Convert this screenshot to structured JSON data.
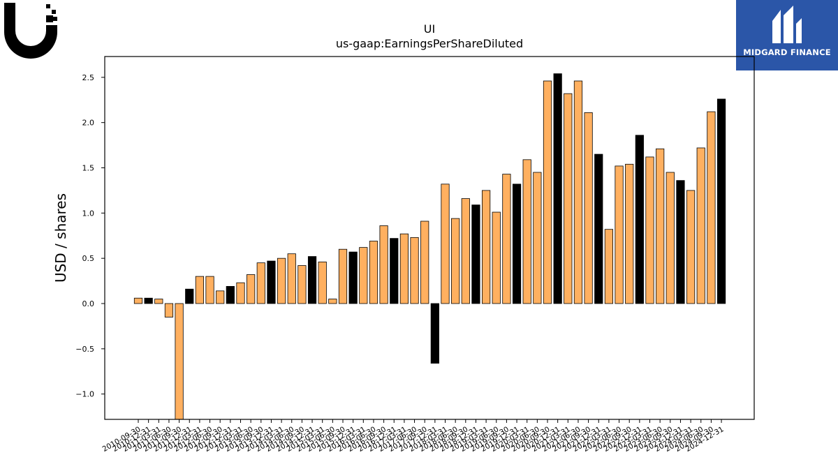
{
  "header": {
    "title": "UI",
    "subtitle": "us-gaap:EarningsPerShareDiluted",
    "brand_name": "MIDGARD FINANCE"
  },
  "colors": {
    "bar_default": "#ffb060",
    "bar_highlight": "#000000",
    "brand_bg": "#2b56a8"
  },
  "chart_data": {
    "type": "bar",
    "title": "UI",
    "subtitle": "us-gaap:EarningsPerShareDiluted",
    "xlabel": "",
    "ylabel": "USD / shares",
    "ylim": [
      -1.28,
      2.73
    ],
    "yticks": [
      -1.0,
      -0.5,
      0.0,
      0.5,
      1.0,
      1.5,
      2.0,
      2.5
    ],
    "ytick_labels": [
      "−1.0",
      "−0.5",
      "0.0",
      "0.5",
      "1.0",
      "1.5",
      "2.0",
      "2.5"
    ],
    "grid": false,
    "legend": "none",
    "categories": [
      "2010-09-30",
      "2010-12-31",
      "2011-03-31",
      "2011-06-30",
      "2011-09-30",
      "2011-12-31",
      "2012-03-31",
      "2012-06-30",
      "2012-09-30",
      "2012-12-31",
      "2013-03-31",
      "2013-06-30",
      "2013-09-30",
      "2013-12-31",
      "2014-03-31",
      "2014-06-30",
      "2014-09-30",
      "2014-12-31",
      "2015-03-31",
      "2015-06-30",
      "2015-09-30",
      "2015-12-31",
      "2016-03-31",
      "2016-06-30",
      "2016-09-30",
      "2016-12-31",
      "2017-03-31",
      "2017-06-30",
      "2017-09-30",
      "2017-12-31",
      "2018-03-31",
      "2018-06-30",
      "2018-09-30",
      "2018-12-31",
      "2019-03-31",
      "2019-06-30",
      "2019-09-30",
      "2019-12-31",
      "2020-03-31",
      "2020-06-30",
      "2020-09-30",
      "2020-12-31",
      "2021-03-31",
      "2021-06-30",
      "2021-09-30",
      "2021-12-31",
      "2022-03-31",
      "2022-06-30",
      "2022-09-30",
      "2022-12-31",
      "2023-03-31",
      "2023-06-30",
      "2023-09-30",
      "2023-12-31",
      "2024-03-31",
      "2024-06-30",
      "2024-09-30",
      "2024-12-31"
    ],
    "values": [
      0.06,
      0.06,
      0.05,
      -0.15,
      -1.35,
      0.16,
      0.3,
      0.3,
      0.14,
      0.19,
      0.23,
      0.32,
      0.45,
      0.47,
      0.5,
      0.55,
      0.42,
      0.52,
      0.46,
      0.05,
      0.6,
      0.57,
      0.62,
      0.69,
      0.86,
      0.72,
      0.77,
      0.73,
      0.91,
      -0.66,
      1.32,
      0.94,
      1.16,
      1.09,
      1.25,
      1.01,
      1.43,
      1.32,
      1.59,
      1.45,
      2.46,
      2.54,
      2.32,
      2.46,
      2.11,
      1.65,
      0.82,
      1.52,
      1.54,
      1.86,
      1.62,
      1.71,
      1.45,
      1.36,
      1.25,
      1.72,
      2.12,
      2.26
    ],
    "highlighted": [
      false,
      true,
      false,
      false,
      false,
      true,
      false,
      false,
      false,
      true,
      false,
      false,
      false,
      true,
      false,
      false,
      false,
      true,
      false,
      false,
      false,
      true,
      false,
      false,
      false,
      true,
      false,
      false,
      false,
      true,
      false,
      false,
      false,
      true,
      false,
      false,
      false,
      true,
      false,
      false,
      false,
      true,
      false,
      false,
      false,
      true,
      false,
      false,
      false,
      true,
      false,
      false,
      false,
      true,
      false,
      false,
      false,
      true
    ]
  }
}
